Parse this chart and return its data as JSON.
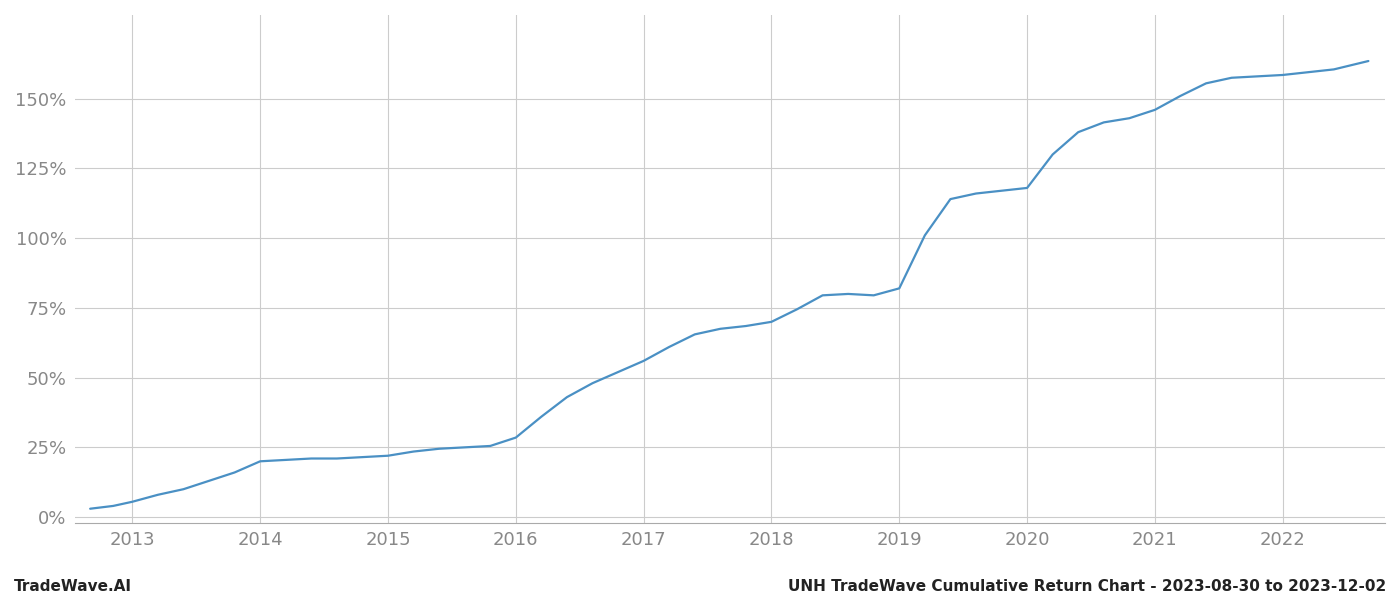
{
  "title_left": "TradeWave.AI",
  "title_right": "UNH TradeWave Cumulative Return Chart - 2023-08-30 to 2023-12-02",
  "line_color": "#4a90c4",
  "background_color": "#ffffff",
  "grid_color": "#cccccc",
  "x_years": [
    2013,
    2014,
    2015,
    2016,
    2017,
    2018,
    2019,
    2020,
    2021,
    2022
  ],
  "data_x": [
    2012.67,
    2012.85,
    2013.0,
    2013.2,
    2013.4,
    2013.6,
    2013.8,
    2014.0,
    2014.2,
    2014.4,
    2014.6,
    2014.8,
    2015.0,
    2015.2,
    2015.4,
    2015.6,
    2015.8,
    2016.0,
    2016.2,
    2016.4,
    2016.6,
    2016.8,
    2017.0,
    2017.2,
    2017.4,
    2017.6,
    2017.8,
    2018.0,
    2018.2,
    2018.4,
    2018.6,
    2018.8,
    2019.0,
    2019.2,
    2019.4,
    2019.6,
    2019.8,
    2020.0,
    2020.2,
    2020.4,
    2020.6,
    2020.8,
    2021.0,
    2021.2,
    2021.4,
    2021.6,
    2021.8,
    2022.0,
    2022.2,
    2022.4,
    2022.67
  ],
  "data_y": [
    0.03,
    0.04,
    0.055,
    0.08,
    0.1,
    0.13,
    0.16,
    0.2,
    0.205,
    0.21,
    0.21,
    0.215,
    0.22,
    0.235,
    0.245,
    0.25,
    0.255,
    0.285,
    0.36,
    0.43,
    0.48,
    0.52,
    0.56,
    0.61,
    0.655,
    0.675,
    0.685,
    0.7,
    0.745,
    0.795,
    0.8,
    0.795,
    0.82,
    1.01,
    1.14,
    1.16,
    1.17,
    1.18,
    1.3,
    1.38,
    1.415,
    1.43,
    1.46,
    1.51,
    1.555,
    1.575,
    1.58,
    1.585,
    1.595,
    1.605,
    1.635
  ],
  "ylim": [
    -0.02,
    1.8
  ],
  "xlim": [
    2012.55,
    2022.8
  ],
  "yticks": [
    0.0,
    0.25,
    0.5,
    0.75,
    1.0,
    1.25,
    1.5
  ],
  "ytick_labels": [
    "0%",
    "25%",
    "50%",
    "75%",
    "100%",
    "125%",
    "150%"
  ],
  "line_width": 1.6,
  "tick_fontsize": 13,
  "footer_fontsize": 11
}
